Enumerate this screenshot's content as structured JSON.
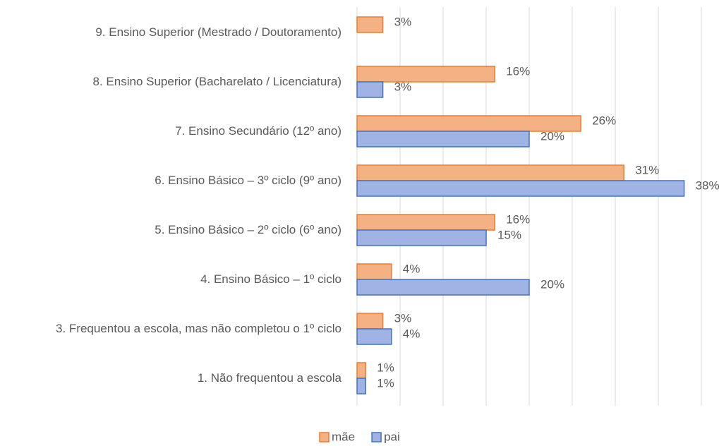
{
  "chart_data": {
    "type": "bar",
    "orientation": "horizontal",
    "categories": [
      "9. Ensino Superior (Mestrado / Doutoramento)",
      "8. Ensino Superior (Bacharelato / Licenciatura)",
      "7. Ensino Secundário (12º ano)",
      "6. Ensino Básico – 3º ciclo (9º ano)",
      "5. Ensino Básico – 2º ciclo (6º ano)",
      "4. Ensino Básico – 1º ciclo",
      "3. Frequentou a escola, mas não completou o 1º ciclo",
      "1. Não frequentou a escola"
    ],
    "series": [
      {
        "name": "mãe",
        "color": "#f4b183",
        "edge": "#ed7d31",
        "values": [
          3,
          16,
          26,
          31,
          16,
          4,
          3,
          1
        ],
        "value_labels": [
          "3%",
          "16%",
          "26%",
          "31%",
          "16%",
          "4%",
          "3%",
          "1%"
        ]
      },
      {
        "name": "pai",
        "color": "#9fb4e4",
        "edge": "#4472c4",
        "values": [
          null,
          3,
          20,
          38,
          15,
          20,
          4,
          1
        ],
        "value_labels": [
          null,
          "3%",
          "20%",
          "38%",
          "15%",
          "20%",
          "4%",
          "1%"
        ]
      }
    ],
    "xlim": [
      0,
      40
    ],
    "xticks": [
      0,
      5,
      10,
      15,
      20,
      25,
      30,
      35,
      40
    ],
    "grid": true,
    "legend": "bottom"
  }
}
